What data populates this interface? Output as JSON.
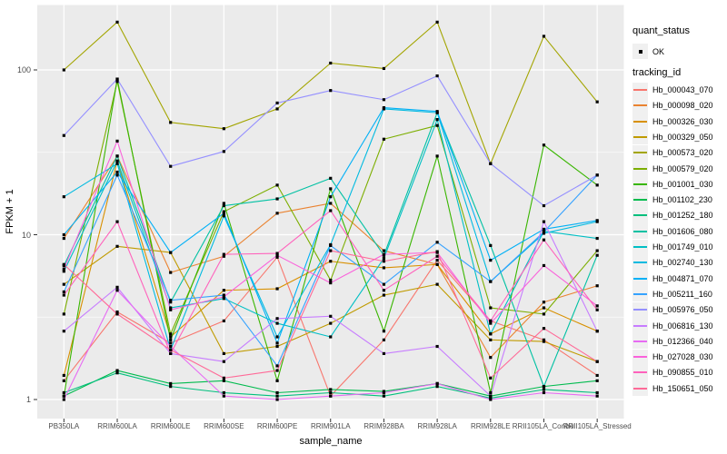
{
  "figure": {
    "y_axis": {
      "title": "FPKM + 1",
      "tick_values": [
        100,
        10,
        1
      ],
      "tick_labels": [
        "100",
        "10",
        "1"
      ]
    },
    "x_axis": {
      "title": "sample_name"
    },
    "legend": {
      "quant_status_title": "quant_status",
      "ok_label": "OK",
      "tracking_id_title": "tracking_id"
    },
    "colors": {
      "panel_background": "#EBEBEB",
      "gridline": "#FFFFFF",
      "tick_text": "#4D4D4D",
      "point": "#000000",
      "legend_key_background": "#F0F0F0"
    }
  },
  "chart_data": {
    "type": "line",
    "title": "",
    "xlabel": "sample_name",
    "ylabel": "FPKM + 1",
    "y_scale": "log10",
    "ylim": [
      0.95,
      230
    ],
    "grid": true,
    "legend_position": "right",
    "point_shape": "filled-black-square",
    "quant_status": "OK",
    "categories": [
      "PB350LA",
      "RRIM600LA",
      "RRIM600LE",
      "RRIM600SE",
      "RRIM600PE",
      "RRIM901LA",
      "RRIM928BA",
      "RRIM928LA",
      "RRIM928LE",
      "RRII105LA_Control",
      "RRII105LA_Stressed"
    ],
    "series": [
      {
        "name": "Hb_000043_070",
        "color": "#F8766D",
        "values": [
          1.3,
          3.4,
          2.2,
          3.0,
          7.3,
          1.05,
          2.3,
          7.0,
          3.0,
          2.3,
          1.4
        ]
      },
      {
        "name": "Hb_000098_020",
        "color": "#EA8331",
        "values": [
          9.5,
          30,
          5.9,
          7.4,
          13.5,
          15.5,
          8.0,
          6.6,
          1.8,
          3.9,
          4.9
        ]
      },
      {
        "name": "Hb_000326_030",
        "color": "#D89000",
        "values": [
          1.4,
          28,
          2.4,
          4.6,
          4.7,
          6.9,
          6.3,
          6.6,
          2.5,
          3.6,
          2.6
        ]
      },
      {
        "name": "Hb_000329_050",
        "color": "#C09B00",
        "values": [
          5.0,
          8.5,
          7.8,
          1.9,
          2.1,
          2.9,
          4.3,
          5.0,
          2.3,
          2.25,
          1.7
        ]
      },
      {
        "name": "Hb_000573_020",
        "color": "#A3A500",
        "values": [
          100,
          195,
          48,
          44,
          58,
          110,
          102,
          195,
          27,
          160,
          64
        ]
      },
      {
        "name": "Hb_000579_020",
        "color": "#7CAE00",
        "values": [
          3.3,
          85,
          2.5,
          13.8,
          20,
          5.3,
          38,
          46,
          3.6,
          3.3,
          8.0
        ]
      },
      {
        "name": "Hb_001001_030",
        "color": "#39B600",
        "values": [
          1.05,
          88,
          2.3,
          15.5,
          1.3,
          19,
          2.6,
          30,
          1.1,
          35,
          20
        ]
      },
      {
        "name": "Hb_001102_230",
        "color": "#00BB4E",
        "values": [
          1.05,
          1.5,
          1.25,
          1.3,
          1.1,
          1.15,
          1.12,
          1.25,
          1.05,
          1.2,
          1.3
        ]
      },
      {
        "name": "Hb_001252_180",
        "color": "#00BF7D",
        "values": [
          1.1,
          1.45,
          1.2,
          1.1,
          1.05,
          1.1,
          1.05,
          1.2,
          1.02,
          1.15,
          1.1
        ]
      },
      {
        "name": "Hb_001606_080",
        "color": "#00C1A3",
        "values": [
          6.5,
          30,
          3.9,
          15,
          16.5,
          22,
          7.5,
          55,
          8.6,
          1.2,
          7.5
        ]
      },
      {
        "name": "Hb_001749_010",
        "color": "#00BFC4",
        "values": [
          6.0,
          28,
          3.6,
          4.1,
          2.9,
          2.4,
          7.2,
          50,
          2.5,
          10.5,
          9.5
        ]
      },
      {
        "name": "Hb_002740_130",
        "color": "#00BAE0",
        "values": [
          17,
          27,
          2.0,
          13,
          2.4,
          8.7,
          58,
          55,
          5.2,
          10.2,
          12
        ]
      },
      {
        "name": "Hb_004871_070",
        "color": "#00B0F6",
        "values": [
          10,
          24,
          7.8,
          13.5,
          2.2,
          17,
          59,
          56,
          7.0,
          10.8,
          12.2
        ]
      },
      {
        "name": "Hb_005211_160",
        "color": "#35A2FF",
        "values": [
          4.5,
          23,
          4.0,
          4.3,
          1.6,
          8.6,
          5.0,
          9.0,
          5.2,
          10.4,
          23
        ]
      },
      {
        "name": "Hb_005976_050",
        "color": "#9590FF",
        "values": [
          40,
          88,
          26,
          32,
          63,
          75,
          66,
          92,
          27,
          15,
          23
        ]
      },
      {
        "name": "Hb_006816_130",
        "color": "#C77CFF",
        "values": [
          2.6,
          4.8,
          1.9,
          1.7,
          3.1,
          3.2,
          1.9,
          2.1,
          1.05,
          12,
          2.6
        ]
      },
      {
        "name": "Hb_012366_040",
        "color": "#E76BF3",
        "values": [
          1.0,
          4.6,
          2.1,
          1.05,
          1.0,
          1.05,
          1.1,
          1.25,
          1.0,
          1.1,
          1.05
        ]
      },
      {
        "name": "Hb_027028_030",
        "color": "#FA62DB",
        "values": [
          6.2,
          37,
          3.5,
          4.2,
          7.5,
          5.1,
          7.6,
          7.8,
          2.9,
          6.5,
          3.7
        ]
      },
      {
        "name": "Hb_090855_010",
        "color": "#FF62BC",
        "values": [
          4.3,
          12,
          1.9,
          7.6,
          7.7,
          14,
          4.6,
          7.4,
          3.0,
          9.3,
          3.5
        ]
      },
      {
        "name": "Hb_150651_050",
        "color": "#FF6A98",
        "values": [
          6.6,
          3.3,
          2.0,
          1.35,
          1.5,
          8.0,
          6.9,
          7.9,
          1.35,
          2.7,
          1.7
        ]
      }
    ]
  }
}
